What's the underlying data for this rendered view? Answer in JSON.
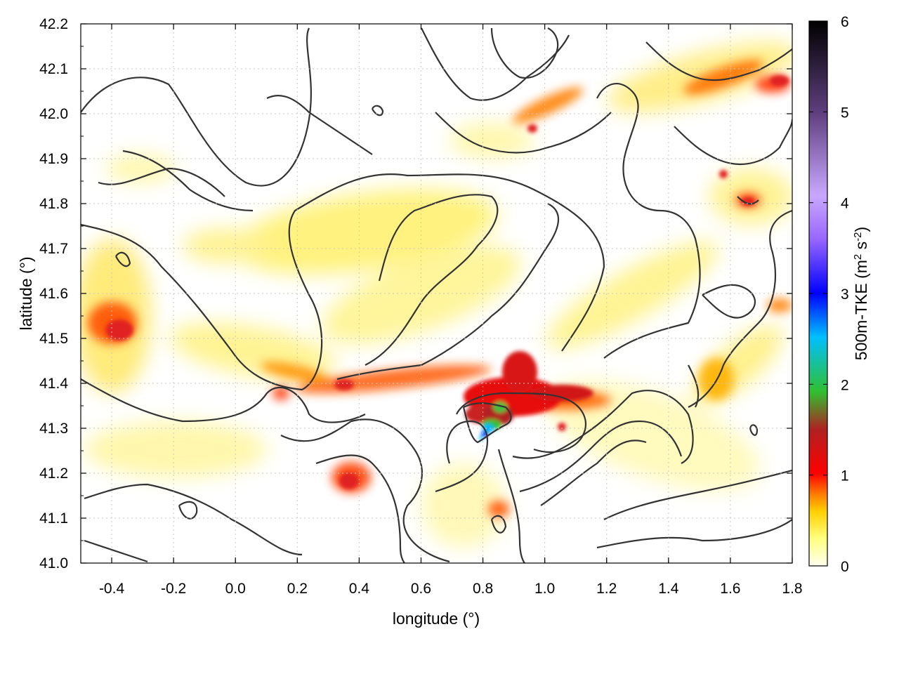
{
  "chart_data": {
    "type": "heatmap",
    "title": "",
    "xlabel": "longitude (°)",
    "ylabel": "latitude (°)",
    "xlim": [
      -0.5,
      1.8
    ],
    "ylim": [
      41.0,
      42.2
    ],
    "x_ticks": [
      "-0.4",
      "-0.2",
      "0.0",
      "0.2",
      "0.4",
      "0.6",
      "0.8",
      "1.0",
      "1.2",
      "1.4",
      "1.6",
      "1.8"
    ],
    "x_tick_values": [
      -0.4,
      -0.2,
      0.0,
      0.2,
      0.4,
      0.6,
      0.8,
      1.0,
      1.2,
      1.4,
      1.6,
      1.8
    ],
    "y_ticks": [
      "41.0",
      "41.1",
      "41.2",
      "41.3",
      "41.4",
      "41.5",
      "41.6",
      "41.7",
      "41.8",
      "41.9",
      "42.0",
      "42.1",
      "42.2"
    ],
    "y_tick_values": [
      41.0,
      41.1,
      41.2,
      41.3,
      41.4,
      41.5,
      41.6,
      41.7,
      41.8,
      41.9,
      42.0,
      42.1,
      42.2
    ],
    "grid": true,
    "colorbar": {
      "label": "500m-TKE (m² s⁻²)",
      "label_main": "500m-TKE (m",
      "label_sup1": "2",
      "label_mid": " s",
      "label_sup2": "-2",
      "label_end": ")",
      "range": [
        0,
        6
      ],
      "ticks": [
        "0",
        "1",
        "2",
        "3",
        "4",
        "5",
        "6"
      ],
      "tick_values": [
        0,
        1,
        2,
        3,
        4,
        5,
        6
      ],
      "colors": [
        "#fffff0",
        "#ffff80",
        "#ffd000",
        "#ff8000",
        "#ff0000",
        "#b02020",
        "#30c030",
        "#00c0ff",
        "#0000ff",
        "#9966ff",
        "#c8a8ff",
        "#604080",
        "#000000"
      ]
    },
    "hotspots": [
      {
        "lon": 0.82,
        "lat": 41.3,
        "tke": 3.2
      },
      {
        "lon": 0.9,
        "lat": 41.37,
        "tke": 1.9
      },
      {
        "lon": 0.78,
        "lat": 41.36,
        "tke": 1.2
      },
      {
        "lon": 1.05,
        "lat": 41.37,
        "tke": 1.1
      },
      {
        "lon": 0.55,
        "lat": 41.41,
        "tke": 1.0
      },
      {
        "lon": 0.4,
        "lat": 41.2,
        "tke": 1.0
      },
      {
        "lon": -0.45,
        "lat": 41.52,
        "tke": 1.0
      },
      {
        "lon": 0.36,
        "lat": 41.4,
        "tke": 0.9
      },
      {
        "lon": 1.75,
        "lat": 42.07,
        "tke": 0.9
      },
      {
        "lon": 1.05,
        "lat": 42.05,
        "tke": 0.9
      },
      {
        "lon": 1.68,
        "lat": 41.8,
        "tke": 0.9
      },
      {
        "lon": 1.6,
        "lat": 42.09,
        "tke": 0.8
      },
      {
        "lon": 0.1,
        "lat": 41.6,
        "tke": 0.5
      },
      {
        "lon": 0.6,
        "lat": 41.7,
        "tke": 0.6
      },
      {
        "lon": 1.5,
        "lat": 41.55,
        "tke": 0.6
      }
    ]
  }
}
